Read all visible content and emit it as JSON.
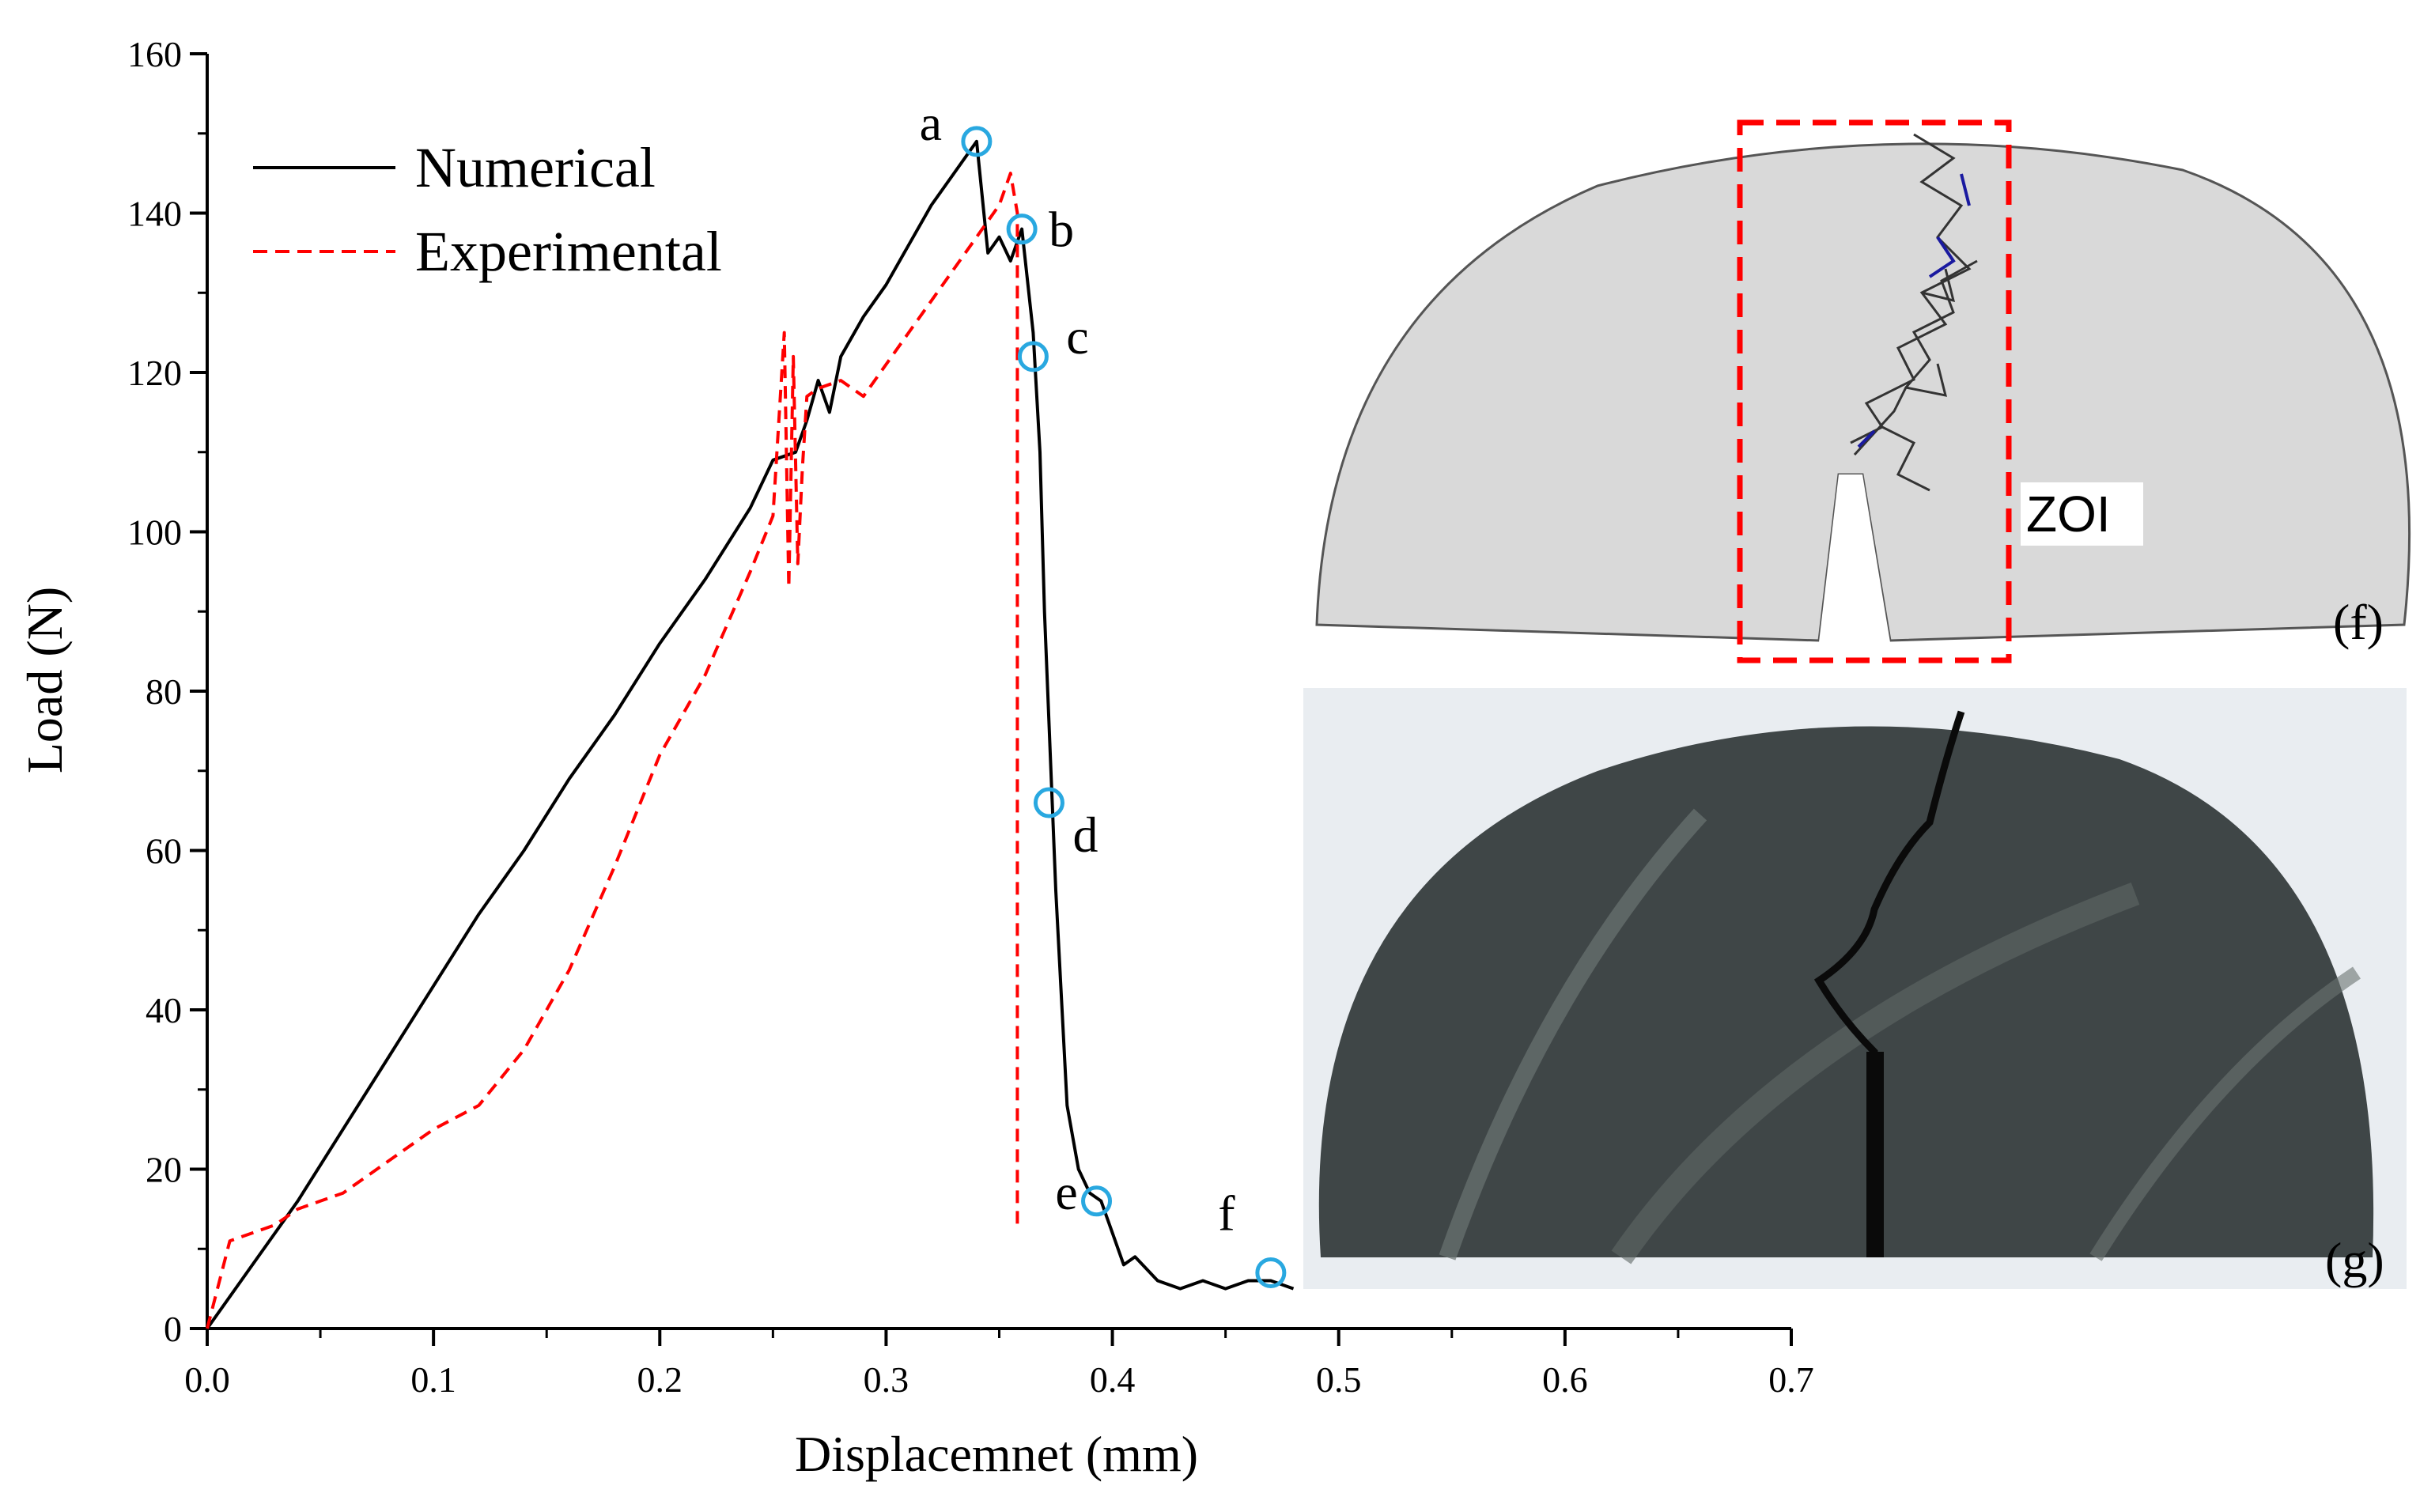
{
  "chart_data": {
    "type": "line",
    "title": "",
    "xlabel": "Displacemnet (mm)",
    "ylabel": "Load (N)",
    "xlim": [
      0.0,
      0.7
    ],
    "ylim": [
      0,
      160
    ],
    "xticks": [
      "0.0",
      "0.1",
      "0.2",
      "0.3",
      "0.4",
      "0.5",
      "0.6",
      "0.7"
    ],
    "yticks": [
      "0",
      "20",
      "40",
      "60",
      "80",
      "100",
      "120",
      "140",
      "160"
    ],
    "x_tick_values": [
      0.0,
      0.1,
      0.2,
      0.3,
      0.4,
      0.5,
      0.6,
      0.7
    ],
    "y_tick_values": [
      0,
      20,
      40,
      60,
      80,
      100,
      120,
      140,
      160
    ],
    "grid": false,
    "legend_position": "top-left",
    "series": [
      {
        "name": "Numerical",
        "color": "#000000",
        "style": "solid",
        "x": [
          0.0,
          0.02,
          0.04,
          0.06,
          0.08,
          0.1,
          0.12,
          0.14,
          0.16,
          0.18,
          0.2,
          0.22,
          0.24,
          0.25,
          0.26,
          0.265,
          0.27,
          0.275,
          0.28,
          0.29,
          0.3,
          0.31,
          0.32,
          0.33,
          0.34,
          0.345,
          0.35,
          0.355,
          0.36,
          0.365,
          0.368,
          0.37,
          0.375,
          0.38,
          0.385,
          0.39,
          0.395,
          0.4,
          0.405,
          0.41,
          0.42,
          0.43,
          0.44,
          0.45,
          0.46,
          0.47,
          0.48
        ],
        "y": [
          0,
          8,
          16,
          25,
          34,
          43,
          52,
          60,
          69,
          77,
          86,
          94,
          103,
          109,
          110,
          114,
          119,
          115,
          122,
          127,
          131,
          136,
          141,
          145,
          149,
          135,
          137,
          134,
          138,
          125,
          110,
          90,
          55,
          28,
          20,
          17,
          16,
          12,
          8,
          9,
          6,
          5,
          6,
          5,
          6,
          6,
          5
        ]
      },
      {
        "name": "Experimental",
        "color": "#ff0000",
        "style": "dashed",
        "x": [
          0.0,
          0.01,
          0.02,
          0.03,
          0.04,
          0.05,
          0.06,
          0.08,
          0.1,
          0.12,
          0.14,
          0.16,
          0.18,
          0.2,
          0.22,
          0.24,
          0.25,
          0.255,
          0.257,
          0.259,
          0.261,
          0.263,
          0.265,
          0.27,
          0.28,
          0.29,
          0.3,
          0.31,
          0.32,
          0.33,
          0.34,
          0.35,
          0.355,
          0.358,
          0.358
        ],
        "y": [
          0,
          11,
          12,
          13,
          15,
          16,
          17,
          21,
          25,
          28,
          35,
          45,
          58,
          72,
          82,
          95,
          102,
          125,
          93,
          122,
          96,
          108,
          117,
          118,
          119,
          117,
          121,
          125,
          129,
          133,
          137,
          141,
          145,
          140,
          13
        ]
      }
    ],
    "markers": [
      {
        "label": "a",
        "x": 0.34,
        "y": 149
      },
      {
        "label": "b",
        "x": 0.36,
        "y": 138
      },
      {
        "label": "c",
        "x": 0.365,
        "y": 122
      },
      {
        "label": "d",
        "x": 0.372,
        "y": 66
      },
      {
        "label": "e",
        "x": 0.393,
        "y": 16
      },
      {
        "label": "f",
        "x": 0.47,
        "y": 7
      }
    ],
    "marker_color": "#29a8e0"
  },
  "panels": {
    "f_label": "(f)",
    "g_label": "(g)",
    "zoi_label": "ZOI"
  }
}
